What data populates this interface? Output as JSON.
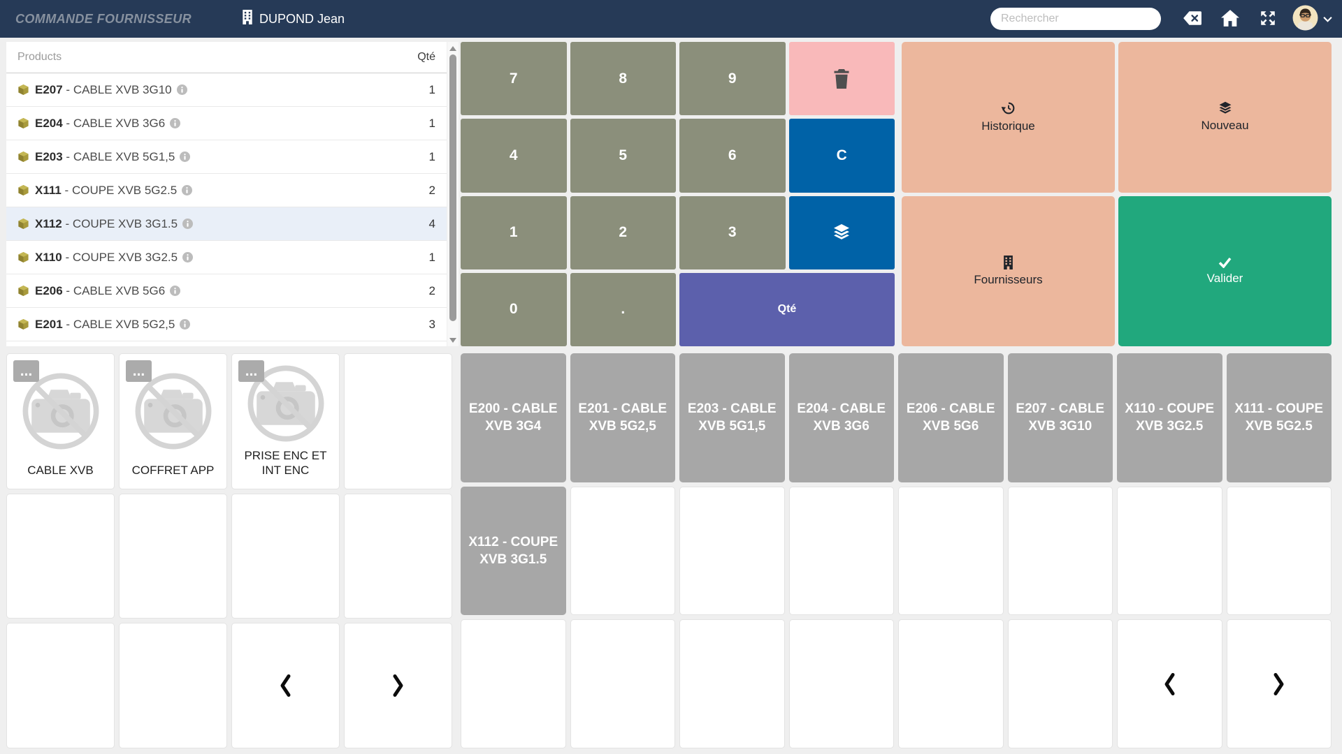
{
  "navbar": {
    "title": "COMMANDE FOURNISSEUR",
    "user": "DUPOND Jean",
    "search": {
      "placeholder": "Rechercher",
      "value": ""
    }
  },
  "products_panel": {
    "header": {
      "products": "Products",
      "qty": "Qté"
    },
    "sep": " - ",
    "rows": [
      {
        "code": "E207",
        "name": "CABLE XVB 3G10",
        "qty": "1",
        "selected": false
      },
      {
        "code": "E204",
        "name": "CABLE XVB 3G6",
        "qty": "1",
        "selected": false
      },
      {
        "code": "E203",
        "name": "CABLE XVB 5G1,5",
        "qty": "1",
        "selected": false
      },
      {
        "code": "X111",
        "name": "COUPE XVB 5G2.5",
        "qty": "2",
        "selected": false
      },
      {
        "code": "X112",
        "name": "COUPE XVB 3G1.5",
        "qty": "4",
        "selected": true
      },
      {
        "code": "X110",
        "name": "COUPE XVB 3G2.5",
        "qty": "1",
        "selected": false
      },
      {
        "code": "E206",
        "name": "CABLE XVB 5G6",
        "qty": "2",
        "selected": false
      },
      {
        "code": "E201",
        "name": "CABLE XVB 5G2,5",
        "qty": "3",
        "selected": false
      }
    ]
  },
  "keypad": {
    "keys": [
      {
        "label": "7",
        "variant": "olive"
      },
      {
        "label": "8",
        "variant": "olive"
      },
      {
        "label": "9",
        "variant": "olive"
      },
      {
        "icon": "trash",
        "variant": "danger",
        "name": "delete"
      },
      {
        "label": "4",
        "variant": "olive"
      },
      {
        "label": "5",
        "variant": "olive"
      },
      {
        "label": "6",
        "variant": "olive"
      },
      {
        "label": "C",
        "variant": "primary",
        "name": "clear"
      },
      {
        "label": "1",
        "variant": "olive"
      },
      {
        "label": "2",
        "variant": "olive"
      },
      {
        "label": "3",
        "variant": "olive"
      },
      {
        "icon": "layers",
        "variant": "primary",
        "name": "layers"
      },
      {
        "label": "0",
        "variant": "olive"
      },
      {
        "label": ".",
        "variant": "olive"
      },
      {
        "label": "Qté",
        "variant": "qty",
        "span": 2,
        "name": "qty"
      }
    ]
  },
  "actions": [
    {
      "label": "Historique",
      "icon": "history",
      "variant": "salmon"
    },
    {
      "label": "Nouveau",
      "icon": "layers",
      "variant": "salmon"
    },
    {
      "label": "Fournisseurs",
      "icon": "building",
      "variant": "salmon"
    },
    {
      "label": "Valider",
      "icon": "check",
      "variant": "success"
    }
  ],
  "categories": {
    "more_badge": "...",
    "tiles": [
      {
        "label": "CABLE XVB"
      },
      {
        "label": "COFFRET APP"
      },
      {
        "label": "PRISE ENC ET INT ENC"
      }
    ]
  },
  "products_grid": {
    "tiles": [
      "E200 - CABLE XVB 3G4",
      "E201 - CABLE XVB 5G2,5",
      "E203 - CABLE XVB 5G1,5",
      "E204 - CABLE XVB 3G6",
      "E206 - CABLE XVB 5G6",
      "E207 - CABLE XVB 3G10",
      "X110 - COUPE XVB 3G2.5",
      "X111 - COUPE XVB 5G2.5",
      "X112 - COUPE XVB 3G1.5"
    ]
  },
  "colors": {
    "navbar": "#263a57",
    "key_olive": "#8b8f7b",
    "danger_pink": "#f9b9ba",
    "accent_blue": "#0062a7",
    "qty_purple": "#5c60ac",
    "action_salmon": "#ecb79d",
    "success_green": "#21a87d",
    "tile_gray": "#a7a7a7",
    "selected_row": "#e9eff8"
  }
}
